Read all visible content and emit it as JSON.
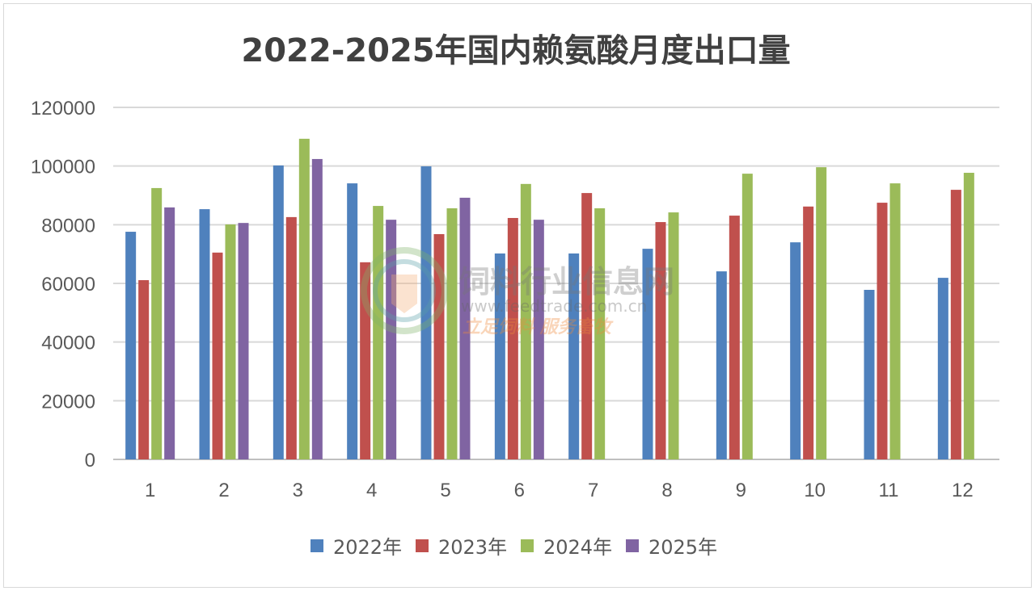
{
  "chart_data": {
    "type": "bar",
    "title": "2022-2025年国内赖氨酸月度出口量",
    "xlabel": "",
    "ylabel": "",
    "categories": [
      "1",
      "2",
      "3",
      "4",
      "5",
      "6",
      "7",
      "8",
      "9",
      "10",
      "11",
      "12"
    ],
    "ylim": [
      0,
      120000
    ],
    "yticks": [
      "0",
      "20000",
      "40000",
      "60000",
      "80000",
      "100000",
      "120000"
    ],
    "grid": true,
    "legend_position": "bottom",
    "series": [
      {
        "name": "2022年",
        "color": "#4f81bd",
        "values": [
          77600,
          85300,
          100200,
          94100,
          99900,
          70200,
          70200,
          71800,
          64100,
          74000,
          57800,
          61900
        ]
      },
      {
        "name": "2023年",
        "color": "#c0504d",
        "values": [
          61100,
          70500,
          82600,
          67200,
          76800,
          82300,
          90800,
          80900,
          83100,
          86200,
          87500,
          91900
        ]
      },
      {
        "name": "2024年",
        "color": "#9bbb59",
        "values": [
          92500,
          80100,
          109300,
          86400,
          85600,
          93900,
          85600,
          84200,
          97400,
          99600,
          94100,
          97700
        ]
      },
      {
        "name": "2025年",
        "color": "#8064a2",
        "values": [
          85900,
          80600,
          102400,
          81700,
          89200,
          81700,
          null,
          null,
          null,
          null,
          null,
          null
        ]
      }
    ]
  },
  "watermark": {
    "name": "饲料行业信息网",
    "url": "www.feedtrade.com.cn",
    "slogan": "立足饲料  服务畜牧"
  }
}
